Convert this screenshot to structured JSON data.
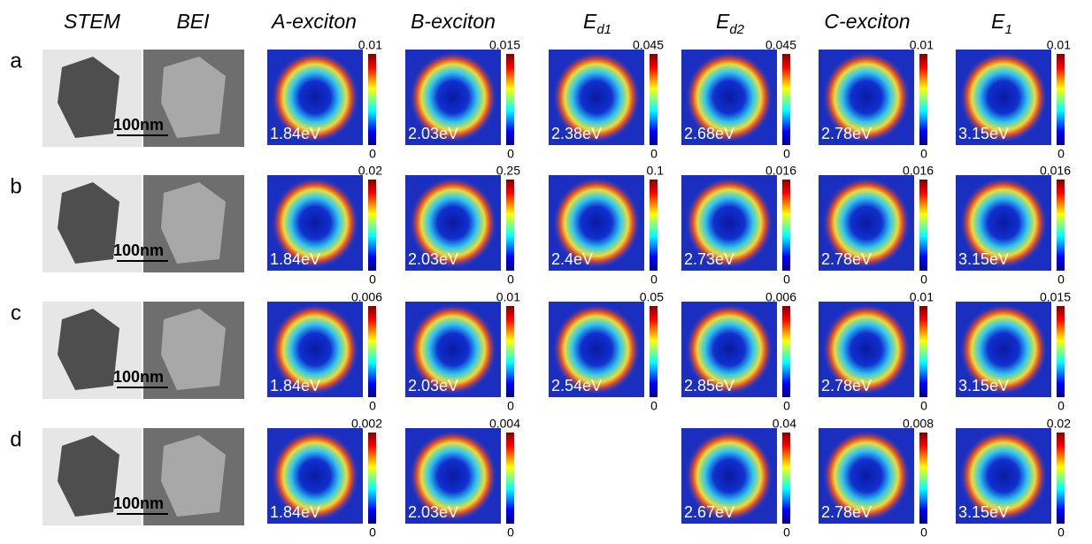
{
  "header": {
    "columns": [
      {
        "text": "STEM"
      },
      {
        "text": "BEI"
      },
      {
        "text": "A-exciton"
      },
      {
        "text": "B-exciton"
      },
      {
        "text": "E",
        "sub": "d1"
      },
      {
        "text": "E",
        "sub": "d2"
      },
      {
        "text": "C-exciton"
      },
      {
        "text": "E",
        "sub": "1"
      }
    ]
  },
  "rows": [
    {
      "label": "a",
      "scale_bar": "100nm",
      "panels": [
        {
          "energy": "1.84eV",
          "max": "0.01",
          "min": "0"
        },
        {
          "energy": "2.03eV",
          "max": "0.015",
          "min": "0"
        },
        {
          "energy": "2.38eV",
          "max": "0.045",
          "min": "0"
        },
        {
          "energy": "2.68eV",
          "max": "0.045",
          "min": "0"
        },
        {
          "energy": "2.78eV",
          "max": "0.01",
          "min": "0"
        },
        {
          "energy": "3.15eV",
          "max": "0.01",
          "min": "0"
        }
      ]
    },
    {
      "label": "b",
      "scale_bar": "100nm",
      "panels": [
        {
          "energy": "1.84eV",
          "max": "0.02",
          "min": "0"
        },
        {
          "energy": "2.03eV",
          "max": "0.25",
          "min": "0"
        },
        {
          "energy": "2.4eV",
          "max": "0.1",
          "min": "0"
        },
        {
          "energy": "2.73eV",
          "max": "0.016",
          "min": "0"
        },
        {
          "energy": "2.78eV",
          "max": "0.016",
          "min": "0"
        },
        {
          "energy": "3.15eV",
          "max": "0.016",
          "min": "0"
        }
      ]
    },
    {
      "label": "c",
      "scale_bar": "100nm",
      "panels": [
        {
          "energy": "1.84eV",
          "max": "0.006",
          "min": "0"
        },
        {
          "energy": "2.03eV",
          "max": "0.01",
          "min": "0"
        },
        {
          "energy": "2.54eV",
          "max": "0.05",
          "min": "0"
        },
        {
          "energy": "2.85eV",
          "max": "0.006",
          "min": "0"
        },
        {
          "energy": "2.78eV",
          "max": "0.01",
          "min": "0"
        },
        {
          "energy": "3.15eV",
          "max": "0.015",
          "min": "0"
        }
      ]
    },
    {
      "label": "d",
      "scale_bar": "100nm",
      "panels": [
        {
          "energy": "1.84eV",
          "max": "0.002",
          "min": "0"
        },
        {
          "energy": "2.03eV",
          "max": "0.004",
          "min": "0"
        },
        null,
        {
          "energy": "2.67eV",
          "max": "0.04",
          "min": "0"
        },
        {
          "energy": "2.78eV",
          "max": "0.008",
          "min": "0"
        },
        {
          "energy": "3.15eV",
          "max": "0.02",
          "min": "0"
        }
      ]
    }
  ]
}
